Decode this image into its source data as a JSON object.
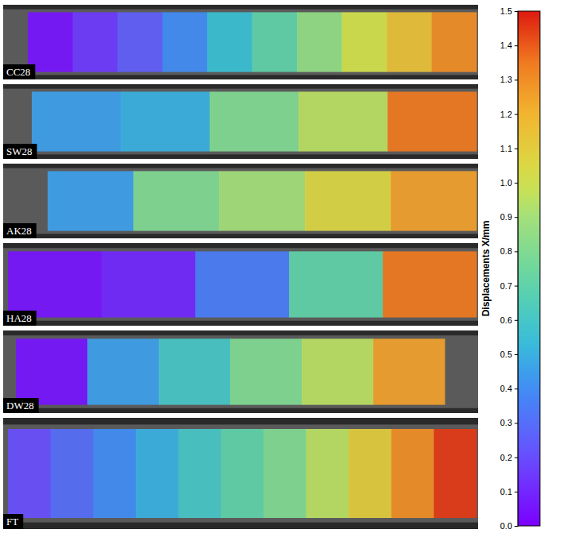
{
  "chart_data": {
    "type": "heatmap",
    "series": [
      {
        "name": "CC28",
        "values": [
          0.05,
          0.15,
          0.25,
          0.4,
          0.55,
          0.7,
          0.85,
          1.0,
          1.15,
          1.3
        ]
      },
      {
        "name": "SW28",
        "values": [
          0.45,
          0.5,
          0.8,
          0.95,
          1.35
        ]
      },
      {
        "name": "AK28",
        "values": [
          0.45,
          0.8,
          0.9,
          1.05,
          1.25
        ]
      },
      {
        "name": "HA28",
        "values": [
          0.05,
          0.1,
          0.35,
          0.7,
          1.35
        ]
      },
      {
        "name": "DW28",
        "values": [
          0.05,
          0.45,
          0.6,
          0.8,
          0.95,
          1.25
        ]
      },
      {
        "name": "FT",
        "values": [
          0.2,
          0.3,
          0.4,
          0.5,
          0.6,
          0.7,
          0.8,
          0.95,
          1.1,
          1.3,
          1.45
        ]
      }
    ],
    "colorbar": {
      "label": "Displacements X/mm",
      "range": [
        0,
        1.5
      ],
      "ticks": [
        {
          "value": 0,
          "label": "0.0"
        },
        0.1,
        0.2,
        0.3,
        0.4,
        0.5,
        0.6,
        0.7,
        0.8,
        0.9,
        {
          "value": 1,
          "label": "1.0"
        },
        1.1,
        1.2,
        1.3,
        1.4,
        1.5
      ]
    }
  }
}
